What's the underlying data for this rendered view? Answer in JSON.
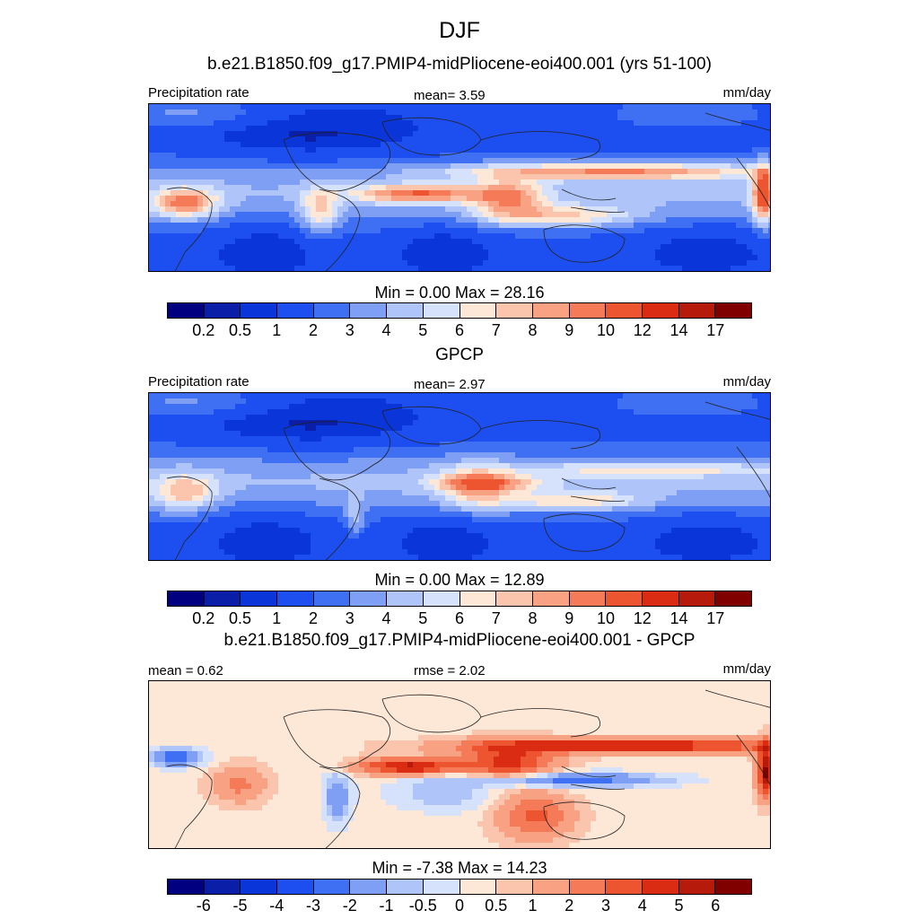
{
  "title": "DJF",
  "panels": [
    {
      "title": "b.e21.B1850.f09_g17.PMIP4-midPliocene-eoi400.001 (yrs 51-100)",
      "left_label": "Precipitation rate",
      "center_label": "mean=   3.59",
      "right_label": "mm/day",
      "minmax": "Min =   0.00 Max =  28.16",
      "kind": "model"
    },
    {
      "title": "GPCP",
      "left_label": "Precipitation rate",
      "center_label": "mean=   2.97",
      "right_label": "mm/day",
      "minmax": "Min =   0.00 Max =  12.89",
      "kind": "obs"
    },
    {
      "title": "b.e21.B1850.f09_g17.PMIP4-midPliocene-eoi400.001 - GPCP",
      "left_label": "mean =   0.62",
      "center_label": "rmse =   2.02",
      "right_label": "mm/day",
      "minmax": "Min =  -7.38 Max =  14.23",
      "kind": "diff"
    }
  ],
  "colorbars": {
    "precip": {
      "colors": [
        "#000080",
        "#0a1ea8",
        "#0a35d8",
        "#1d4ff0",
        "#3f6ff2",
        "#7f9ff5",
        "#afc4f8",
        "#d6e2fb",
        "#fde8d8",
        "#fbc5ad",
        "#f8a183",
        "#f57a57",
        "#ec5530",
        "#d92c12",
        "#b51a0a",
        "#800000"
      ],
      "ticks": [
        "0.2",
        "0.5",
        "1",
        "2",
        "3",
        "4",
        "5",
        "6",
        "7",
        "8",
        "9",
        "10",
        "12",
        "14",
        "17"
      ]
    },
    "diff": {
      "colors": [
        "#000080",
        "#0a1ea8",
        "#0a35d8",
        "#1d4ff0",
        "#3f6ff2",
        "#7f9ff5",
        "#afc4f8",
        "#d6e2fb",
        "#fde8d8",
        "#fbc5ad",
        "#f8a183",
        "#f57a57",
        "#ec5530",
        "#d92c12",
        "#b51a0a",
        "#800000"
      ],
      "ticks": [
        "-6",
        "-5",
        "-4",
        "-3",
        "-2",
        "-1",
        "-0.5",
        "0",
        "0.5",
        "1",
        "2",
        "3",
        "4",
        "5",
        "6"
      ]
    }
  }
}
